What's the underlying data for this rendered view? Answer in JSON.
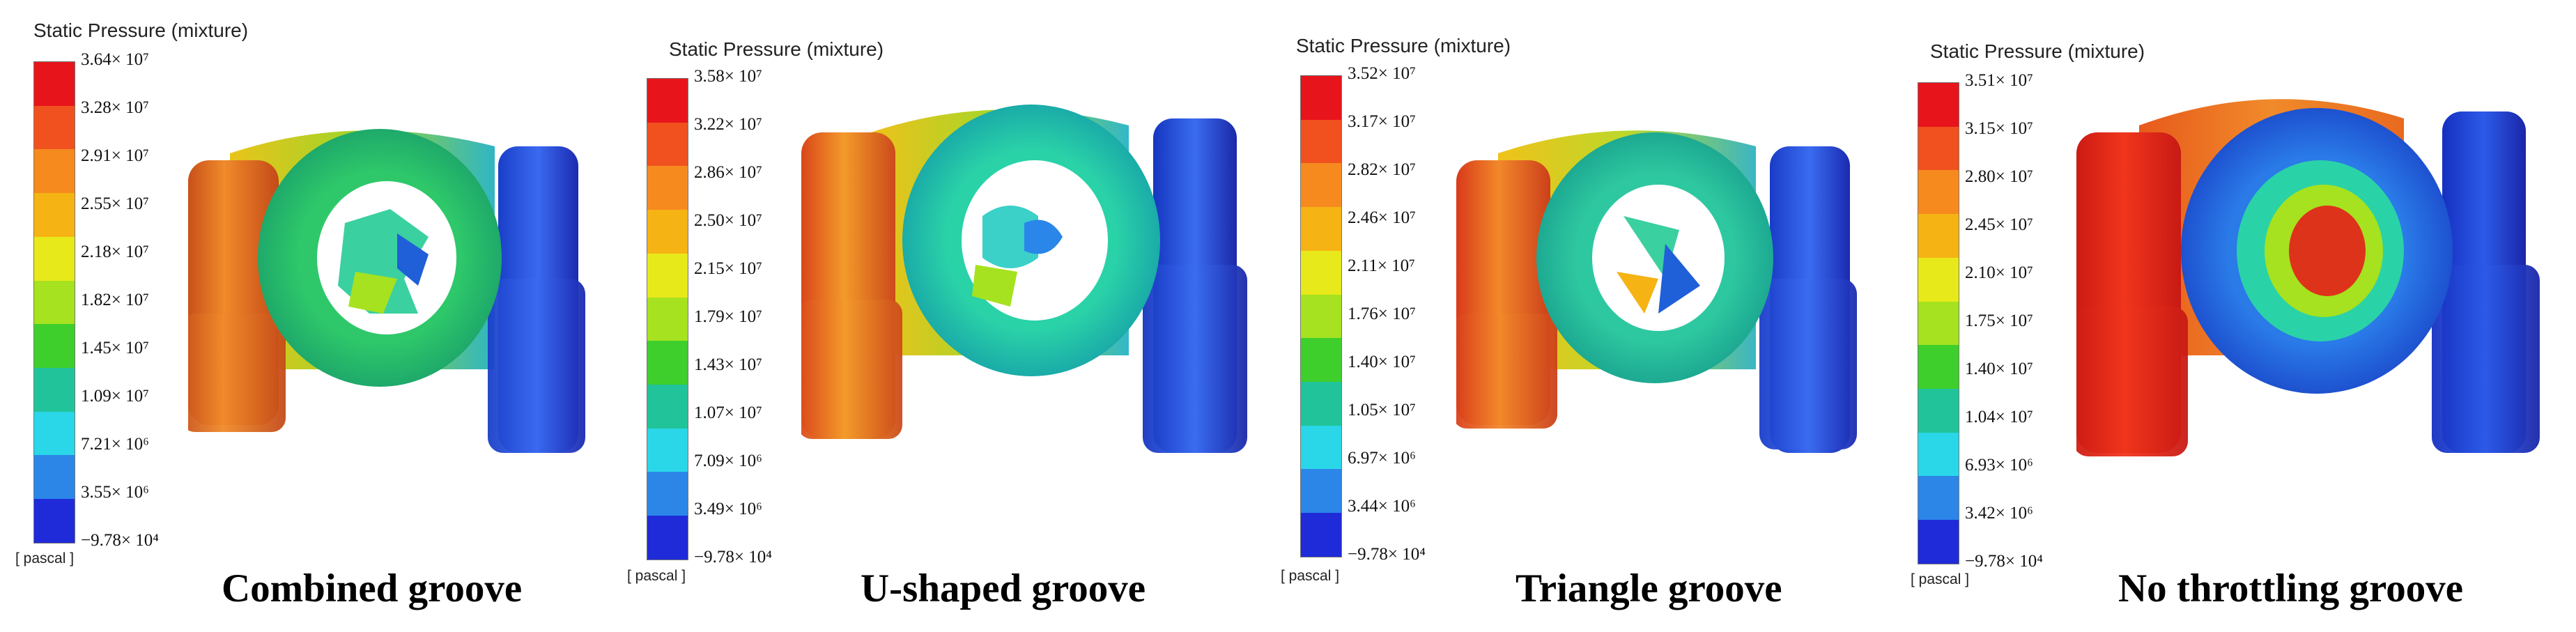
{
  "panels": [
    {
      "legend_title": "Static Pressure (mixture)",
      "unit": "[ pascal ]",
      "caption": "Combined groove",
      "ticks": [
        "3.64× 10⁷",
        "3.28× 10⁷",
        "2.91× 10⁷",
        "2.55× 10⁷",
        "2.18× 10⁷",
        "1.82× 10⁷",
        "1.45× 10⁷",
        "1.09× 10⁷",
        "7.21× 10⁶",
        "3.55× 10⁶",
        "−9.78× 10⁴"
      ]
    },
    {
      "legend_title": "Static Pressure (mixture)",
      "unit": "[ pascal ]",
      "caption": "U-shaped groove",
      "ticks": [
        "3.58× 10⁷",
        "3.22× 10⁷",
        "2.86× 10⁷",
        "2.50× 10⁷",
        "2.15× 10⁷",
        "1.79× 10⁷",
        "1.43× 10⁷",
        "1.07× 10⁷",
        "7.09× 10⁶",
        "3.49× 10⁶",
        "−9.78× 10⁴"
      ]
    },
    {
      "legend_title": "Static Pressure (mixture)",
      "unit": "[ pascal ]",
      "caption": "Triangle groove",
      "ticks": [
        "3.52× 10⁷",
        "3.17× 10⁷",
        "2.82× 10⁷",
        "2.46× 10⁷",
        "2.11× 10⁷",
        "1.76× 10⁷",
        "1.40× 10⁷",
        "1.05× 10⁷",
        "6.97× 10⁶",
        "3.44× 10⁶",
        "−9.78× 10⁴"
      ]
    },
    {
      "legend_title": "Static Pressure (mixture)",
      "unit": "[ pascal ]",
      "caption": "No throttling groove",
      "ticks": [
        "3.51× 10⁷",
        "3.15× 10⁷",
        "2.80× 10⁷",
        "2.45× 10⁷",
        "2.10× 10⁷",
        "1.75× 10⁷",
        "1.40× 10⁷",
        "1.04× 10⁷",
        "6.93× 10⁶",
        "3.42× 10⁶",
        "−9.78× 10⁴"
      ]
    }
  ],
  "colormap": [
    "#e8141b",
    "#f0511f",
    "#f68a1f",
    "#f6b314",
    "#e8e91a",
    "#a6e21f",
    "#3fcf2c",
    "#21c49a",
    "#2ad7e8",
    "#2b86e8",
    "#1f2bd8"
  ]
}
